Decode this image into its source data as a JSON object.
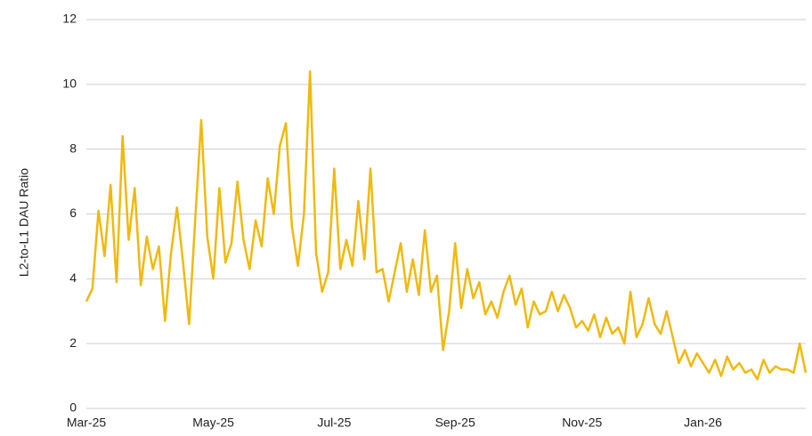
{
  "chart_data": {
    "type": "line",
    "y_label": "L2-to-L1 DAU Ratio",
    "categories": [
      "Mar-25",
      null,
      null,
      null,
      null,
      null,
      null,
      null,
      null,
      null,
      null,
      null,
      null,
      null,
      null,
      null,
      null,
      null,
      null,
      null,
      null,
      "May-25",
      null,
      null,
      null,
      null,
      null,
      null,
      null,
      null,
      null,
      null,
      null,
      null,
      null,
      null,
      null,
      null,
      null,
      null,
      null,
      "Jul-25",
      null,
      null,
      null,
      null,
      null,
      null,
      null,
      null,
      null,
      null,
      null,
      null,
      null,
      null,
      null,
      null,
      null,
      null,
      null,
      "Sep-25",
      null,
      null,
      null,
      null,
      null,
      null,
      null,
      null,
      null,
      null,
      null,
      null,
      null,
      null,
      null,
      null,
      null,
      null,
      null,
      null,
      "Nov-25",
      null,
      null,
      null,
      null,
      null,
      null,
      null,
      null,
      null,
      null,
      null,
      null,
      null,
      null,
      null,
      null,
      null,
      null,
      null,
      "Jan-26",
      null,
      null,
      null,
      null,
      null,
      null,
      null,
      null,
      null,
      null,
      null,
      null,
      null,
      null,
      null,
      null,
      null
    ],
    "series": [
      {
        "name": "L2-to-L1 DAU Ratio",
        "color": "#f0b90f",
        "values": [
          3.3,
          3.7,
          6.1,
          4.7,
          6.9,
          3.9,
          8.4,
          5.2,
          6.8,
          3.8,
          5.3,
          4.3,
          5.0,
          2.7,
          4.8,
          6.2,
          4.5,
          2.6,
          5.8,
          8.9,
          5.3,
          4.0,
          6.8,
          4.5,
          5.1,
          7.0,
          5.2,
          4.3,
          5.8,
          5.0,
          7.1,
          6.0,
          8.1,
          8.8,
          5.6,
          4.4,
          6.0,
          10.4,
          4.8,
          3.6,
          4.2,
          7.4,
          4.3,
          5.2,
          4.4,
          6.4,
          4.6,
          7.4,
          4.2,
          4.3,
          3.3,
          4.2,
          5.1,
          3.6,
          4.6,
          3.5,
          5.5,
          3.6,
          4.1,
          1.8,
          3.0,
          5.1,
          3.1,
          4.3,
          3.4,
          3.9,
          2.9,
          3.3,
          2.8,
          3.6,
          4.1,
          3.2,
          3.7,
          2.5,
          3.3,
          2.9,
          3.0,
          3.6,
          3.0,
          3.5,
          3.1,
          2.5,
          2.7,
          2.4,
          2.9,
          2.2,
          2.8,
          2.3,
          2.5,
          2.0,
          3.6,
          2.2,
          2.6,
          3.4,
          2.6,
          2.3,
          3.0,
          2.2,
          1.4,
          1.8,
          1.3,
          1.7,
          1.4,
          1.1,
          1.5,
          1.0,
          1.6,
          1.2,
          1.4,
          1.1,
          1.2,
          0.9,
          1.5,
          1.1,
          1.3,
          1.2,
          1.2,
          1.1,
          2.0,
          1.1
        ]
      }
    ],
    "ylim": [
      0,
      12
    ],
    "yticks": [
      0,
      2,
      4,
      6,
      8,
      10,
      12
    ],
    "grid": true
  }
}
